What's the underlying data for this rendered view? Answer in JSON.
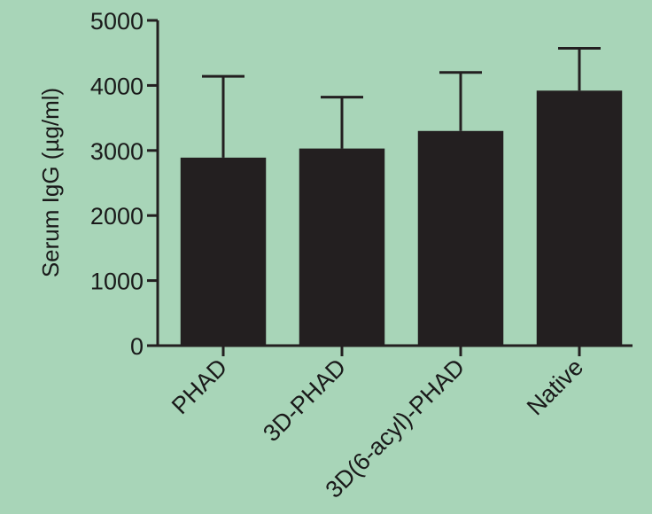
{
  "chart_data": {
    "type": "bar",
    "title": "",
    "xlabel": "",
    "ylabel": "Serum IgG (µg/ml)",
    "categories": [
      "PHAD",
      "3D-PHAD",
      "3D(6-acyl)-PHAD",
      "Native"
    ],
    "series": [
      {
        "values": [
          2890,
          3030,
          3300,
          3920
        ],
        "error_upper": [
          4140,
          3820,
          4200,
          4570
        ]
      }
    ],
    "ylim": [
      0,
      5000
    ],
    "yticks": [
      0,
      1000,
      2000,
      3000,
      4000,
      5000
    ],
    "grid": false,
    "legend": "none",
    "colors": {
      "background": "#a8d5b8",
      "bar": "#231f20",
      "axis": "#231f20"
    }
  }
}
